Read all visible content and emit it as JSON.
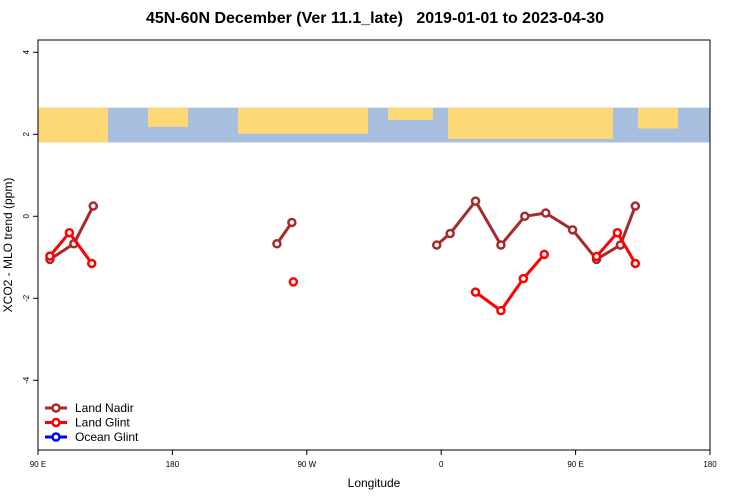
{
  "chart_data": {
    "type": "line",
    "title": "45N-60N December (Ver 11.1_late)   2019-01-01 to 2023-04-30",
    "xlabel": "Longitude",
    "ylabel": "XCO2 - MLO trend (ppm)",
    "x_axis": {
      "ticks": [
        {
          "value": 90,
          "label": "90 E"
        },
        {
          "value": 180,
          "label": "180"
        },
        {
          "value": 270,
          "label": "90 W"
        },
        {
          "value": 360,
          "label": "0"
        },
        {
          "value": 450,
          "label": "90 E"
        },
        {
          "value": 540,
          "label": "180"
        }
      ],
      "range": [
        90,
        540
      ]
    },
    "y_axis": {
      "ticks": [
        -4,
        -2,
        0,
        2,
        4
      ],
      "range": [
        -5.7,
        4.3
      ]
    },
    "map_band": {
      "y_range": [
        1.8,
        2.65
      ],
      "ocean_color": "#a8bedf",
      "land_color": "#fdd877"
    },
    "legend": {
      "position": "bottom-left",
      "entries": [
        "Land Nadir",
        "Land Glint",
        "Ocean Glint"
      ]
    },
    "series": [
      {
        "name": "Land Nadir",
        "color": "#a52a2a",
        "segments": [
          [
            [
              98,
              -1.05
            ],
            [
              114,
              -0.67
            ],
            [
              127,
              0.25
            ]
          ],
          [
            [
              250,
              -0.67
            ],
            [
              260,
              -0.15
            ]
          ],
          [
            [
              357,
              -0.7
            ],
            [
              366,
              -0.42
            ],
            [
              383,
              0.37
            ],
            [
              400,
              -0.7
            ],
            [
              416,
              0.0
            ],
            [
              430,
              0.08
            ],
            [
              448,
              -0.33
            ],
            [
              464,
              -1.05
            ],
            [
              480,
              -0.7
            ],
            [
              490,
              0.25
            ]
          ]
        ]
      },
      {
        "name": "Land Glint",
        "color": "#ff0000",
        "segments": [
          [
            [
              98,
              -0.97
            ],
            [
              111,
              -0.4
            ],
            [
              126,
              -1.15
            ]
          ],
          [
            [
              261,
              -1.6
            ]
          ],
          [
            [
              383,
              -1.85
            ],
            [
              400,
              -2.3
            ],
            [
              415,
              -1.52
            ],
            [
              429,
              -0.93
            ]
          ],
          [
            [
              464,
              -0.98
            ],
            [
              478,
              -0.4
            ],
            [
              490,
              -1.15
            ]
          ]
        ]
      },
      {
        "name": "Ocean Glint",
        "color": "#0000ff",
        "segments": []
      }
    ]
  }
}
